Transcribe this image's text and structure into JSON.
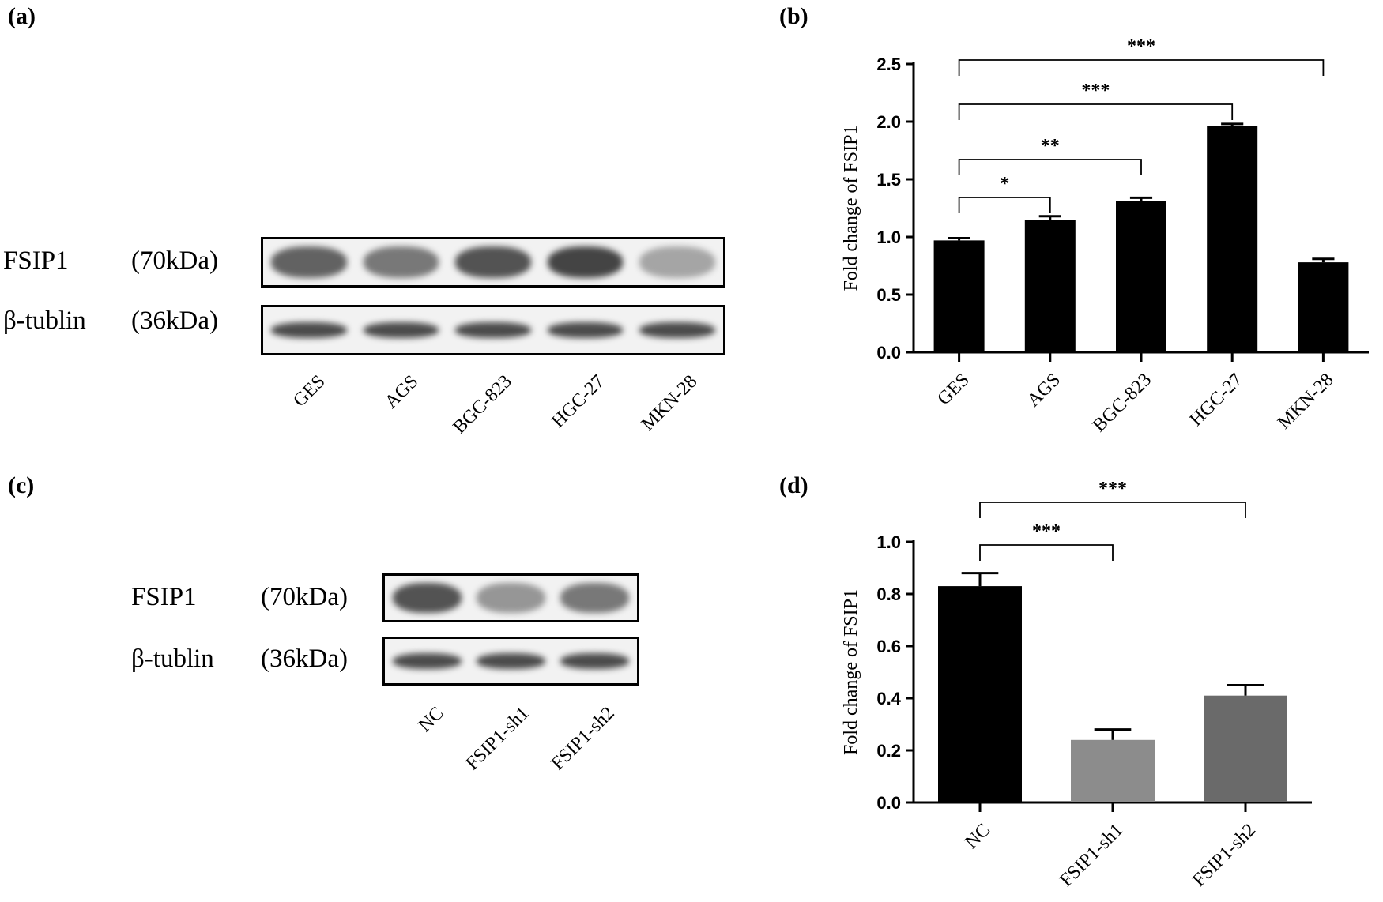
{
  "panels": {
    "a": {
      "label": "(a)"
    },
    "b": {
      "label": "(b)"
    },
    "c": {
      "label": "(c)"
    },
    "d": {
      "label": "(d)"
    }
  },
  "blot_a": {
    "rows": [
      {
        "protein": "FSIP1",
        "weight": "(70kDa)",
        "intensities": [
          0.75,
          0.6,
          0.85,
          0.95,
          0.3
        ]
      },
      {
        "protein": "β-tublin",
        "weight": "(36kDa)",
        "intensities": [
          0.9,
          0.9,
          0.9,
          0.9,
          0.9
        ]
      }
    ],
    "lanes": [
      "GES",
      "AGS",
      "BGC-823",
      "HGC-27",
      "MKN-28"
    ]
  },
  "blot_c": {
    "rows": [
      {
        "protein": "FSIP1",
        "weight": "(70kDa)",
        "intensities": [
          0.85,
          0.4,
          0.6
        ]
      },
      {
        "protein": "β-tublin",
        "weight": "(36kDa)",
        "intensities": [
          0.9,
          0.9,
          0.9
        ]
      }
    ],
    "lanes": [
      "NC",
      "FSIP1-sh1",
      "FSIP1-sh2"
    ]
  },
  "chart_data": [
    {
      "type": "bar",
      "panel": "b",
      "categories": [
        "GES",
        "AGS",
        "BGC-823",
        "HGC-27",
        "MKN-28"
      ],
      "values": [
        0.97,
        1.15,
        1.31,
        1.96,
        0.78
      ],
      "errors": [
        0.02,
        0.03,
        0.03,
        0.02,
        0.03
      ],
      "colors": [
        "#000000",
        "#000000",
        "#000000",
        "#000000",
        "#000000"
      ],
      "ylabel": "Fold change of FSIP1",
      "ylim": [
        0,
        2.5
      ],
      "yticks": [
        "0.0",
        "0.5",
        "1.0",
        "1.5",
        "2.0",
        "2.5"
      ],
      "significance": [
        {
          "from": 0,
          "to": 1,
          "label": "*"
        },
        {
          "from": 0,
          "to": 2,
          "label": "**"
        },
        {
          "from": 0,
          "to": 3,
          "label": "***"
        },
        {
          "from": 0,
          "to": 4,
          "label": "***"
        }
      ]
    },
    {
      "type": "bar",
      "panel": "d",
      "categories": [
        "NC",
        "FSIP1-sh1",
        "FSIP1-sh2"
      ],
      "values": [
        0.83,
        0.24,
        0.41
      ],
      "errors": [
        0.05,
        0.04,
        0.04
      ],
      "colors": [
        "#000000",
        "#8c8c8c",
        "#6a6a6a"
      ],
      "ylabel": "Fold change of FSIP1",
      "ylim": [
        0,
        1.0
      ],
      "yticks": [
        "0.0",
        "0.2",
        "0.4",
        "0.6",
        "0.8",
        "1.0"
      ],
      "significance": [
        {
          "from": 0,
          "to": 1,
          "label": "***"
        },
        {
          "from": 0,
          "to": 2,
          "label": "***"
        }
      ]
    }
  ]
}
